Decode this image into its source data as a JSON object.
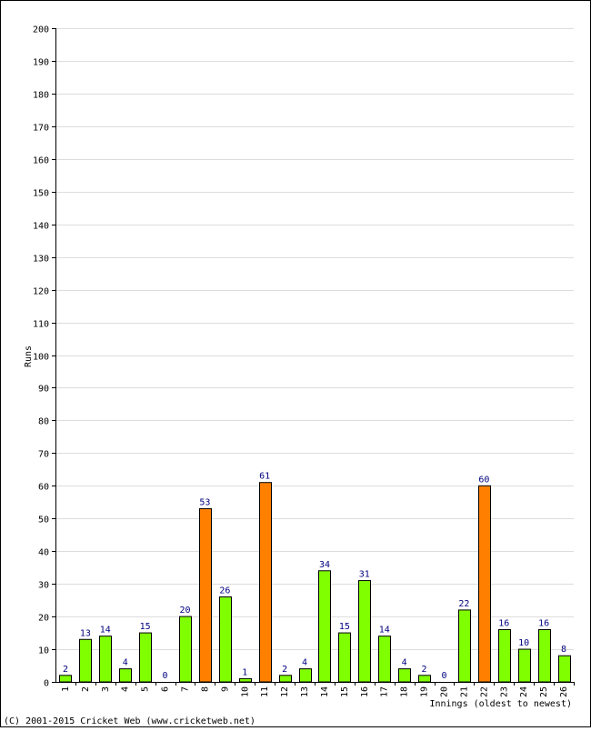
{
  "chart_data": {
    "type": "bar",
    "title": "",
    "xlabel": "Innings (oldest to newest)",
    "ylabel": "Runs",
    "ylim": [
      0,
      200
    ],
    "ytick_step": 10,
    "grid": true,
    "legend": "none",
    "categories": [
      "1",
      "2",
      "3",
      "4",
      "5",
      "6",
      "7",
      "8",
      "9",
      "10",
      "11",
      "12",
      "13",
      "14",
      "15",
      "16",
      "17",
      "18",
      "19",
      "20",
      "21",
      "22",
      "23",
      "24",
      "25",
      "26"
    ],
    "values": [
      2,
      13,
      14,
      4,
      15,
      0,
      20,
      53,
      26,
      1,
      61,
      2,
      4,
      34,
      15,
      31,
      14,
      4,
      2,
      0,
      22,
      60,
      16,
      10,
      16,
      8
    ],
    "highlight_threshold": 50,
    "colors": {
      "normal": "#80ff00",
      "highlight": "#ff8000",
      "bar_border": "#000000",
      "grid": "#dddddd",
      "data_label": "#000080"
    }
  },
  "footer": {
    "copyright": "(C) 2001-2015 Cricket Web (www.cricketweb.net)"
  }
}
